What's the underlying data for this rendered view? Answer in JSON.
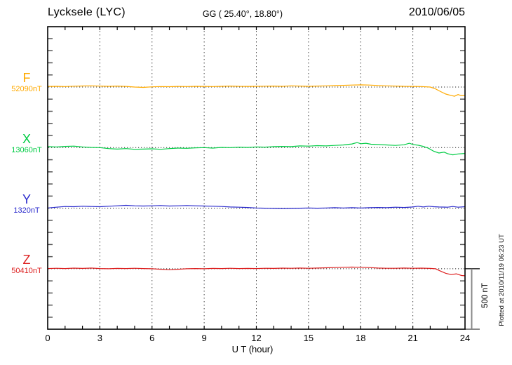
{
  "header": {
    "station": "Lycksele (LYC)",
    "coordinates": "GG ( 25.40°,  18.80°)",
    "date": "2010/06/05"
  },
  "components": [
    {
      "name": "F",
      "baseline_label": "52090nT",
      "color": "#FFAA00"
    },
    {
      "name": "X",
      "baseline_label": "13060nT",
      "color": "#00CC44"
    },
    {
      "name": "Y",
      "baseline_label": "1320nT",
      "color": "#2929CC"
    },
    {
      "name": "Z",
      "baseline_label": "50410nT",
      "color": "#DD2020"
    }
  ],
  "axis": {
    "x_ticks": [
      "0",
      "3",
      "6",
      "9",
      "12",
      "15",
      "18",
      "21",
      "24"
    ],
    "x_tick_hours": [
      0,
      3,
      6,
      9,
      12,
      15,
      18,
      21,
      24
    ],
    "x_label": "U T (hour)"
  },
  "scale_bar": {
    "label": "500 nT",
    "value_nT": 500
  },
  "plotted_note": "Plotted at 2010/11/19 06:23 UT",
  "chart_data": {
    "type": "line",
    "title": "Lycksele (LYC) magnetogram",
    "date": "2010/06/05",
    "xlabel": "U T (hour)",
    "xlim": [
      0,
      24
    ],
    "x_tick_interval_hours": 3,
    "grid": "dotted vertical every 3 h, dotted baseline per component",
    "scale_division_nT": 500,
    "legend_position": "left margin (component letters with baseline values)",
    "series": [
      {
        "name": "F",
        "baseline_nT": 52090,
        "color": "#FFAA00",
        "points_hour_deltaNT": [
          [
            0,
            5
          ],
          [
            0.5,
            6
          ],
          [
            1,
            4
          ],
          [
            1.5,
            7
          ],
          [
            2,
            9
          ],
          [
            2.5,
            10
          ],
          [
            3,
            8
          ],
          [
            3.5,
            6
          ],
          [
            4,
            8
          ],
          [
            4.5,
            5
          ],
          [
            5,
            0
          ],
          [
            5.5,
            -3
          ],
          [
            6,
            2
          ],
          [
            6.5,
            4
          ],
          [
            7,
            3
          ],
          [
            7.5,
            5
          ],
          [
            8,
            4
          ],
          [
            8.5,
            6
          ],
          [
            9,
            5
          ],
          [
            9.5,
            4
          ],
          [
            10,
            6
          ],
          [
            10.5,
            8
          ],
          [
            11,
            6
          ],
          [
            11.5,
            5
          ],
          [
            12,
            6
          ],
          [
            12.5,
            7
          ],
          [
            13,
            8
          ],
          [
            13.5,
            6
          ],
          [
            14,
            10
          ],
          [
            14.5,
            8
          ],
          [
            15,
            6
          ],
          [
            15.5,
            8
          ],
          [
            16,
            10
          ],
          [
            16.5,
            12
          ],
          [
            17,
            14
          ],
          [
            17.5,
            16
          ],
          [
            18,
            18
          ],
          [
            18.5,
            16
          ],
          [
            19,
            12
          ],
          [
            19.5,
            10
          ],
          [
            20,
            8
          ],
          [
            20.5,
            6
          ],
          [
            21,
            5
          ],
          [
            21.5,
            4
          ],
          [
            22,
            0
          ],
          [
            22.3,
            -15
          ],
          [
            22.6,
            -38
          ],
          [
            22.9,
            -58
          ],
          [
            23.2,
            -70
          ],
          [
            23.4,
            -76
          ],
          [
            23.6,
            -62
          ],
          [
            23.8,
            -72
          ],
          [
            24,
            -70
          ]
        ]
      },
      {
        "name": "X",
        "baseline_nT": 13060,
        "color": "#00CC44",
        "points_hour_deltaNT": [
          [
            0,
            8
          ],
          [
            0.5,
            6
          ],
          [
            1,
            10
          ],
          [
            1.5,
            12
          ],
          [
            2,
            6
          ],
          [
            2.5,
            2
          ],
          [
            3,
            0
          ],
          [
            3.5,
            -8
          ],
          [
            4,
            -12
          ],
          [
            4.5,
            -8
          ],
          [
            5,
            -14
          ],
          [
            5.5,
            -12
          ],
          [
            6,
            -10
          ],
          [
            6.5,
            -14
          ],
          [
            7,
            -8
          ],
          [
            7.5,
            -4
          ],
          [
            8,
            -6
          ],
          [
            8.5,
            -2
          ],
          [
            9,
            0
          ],
          [
            9.5,
            -4
          ],
          [
            10,
            2
          ],
          [
            10.5,
            0
          ],
          [
            11,
            4
          ],
          [
            11.5,
            2
          ],
          [
            12,
            6
          ],
          [
            12.5,
            4
          ],
          [
            13,
            8
          ],
          [
            13.5,
            10
          ],
          [
            14,
            8
          ],
          [
            14.5,
            14
          ],
          [
            15,
            12
          ],
          [
            15.5,
            16
          ],
          [
            16,
            14
          ],
          [
            16.5,
            18
          ],
          [
            17,
            22
          ],
          [
            17.5,
            30
          ],
          [
            17.8,
            42
          ],
          [
            18,
            32
          ],
          [
            18.3,
            36
          ],
          [
            18.6,
            28
          ],
          [
            19,
            26
          ],
          [
            19.5,
            22
          ],
          [
            20,
            18
          ],
          [
            20.5,
            24
          ],
          [
            20.8,
            36
          ],
          [
            21,
            26
          ],
          [
            21.3,
            20
          ],
          [
            21.6,
            10
          ],
          [
            21.9,
            -5
          ],
          [
            22.2,
            -30
          ],
          [
            22.5,
            -45
          ],
          [
            22.8,
            -38
          ],
          [
            23,
            -50
          ],
          [
            23.3,
            -60
          ],
          [
            23.6,
            -52
          ],
          [
            24,
            -48
          ]
        ]
      },
      {
        "name": "Y",
        "baseline_nT": 1320,
        "color": "#2929CC",
        "points_hour_deltaNT": [
          [
            0,
            2
          ],
          [
            0.5,
            8
          ],
          [
            1,
            14
          ],
          [
            1.5,
            12
          ],
          [
            2,
            16
          ],
          [
            2.5,
            14
          ],
          [
            3,
            12
          ],
          [
            3.5,
            16
          ],
          [
            4,
            20
          ],
          [
            4.5,
            24
          ],
          [
            5,
            20
          ],
          [
            5.5,
            18
          ],
          [
            6,
            20
          ],
          [
            6.5,
            22
          ],
          [
            7,
            18
          ],
          [
            7.5,
            20
          ],
          [
            8,
            22
          ],
          [
            8.5,
            20
          ],
          [
            9,
            18
          ],
          [
            9.5,
            16
          ],
          [
            10,
            14
          ],
          [
            10.5,
            10
          ],
          [
            11,
            8
          ],
          [
            11.5,
            6
          ],
          [
            12,
            2
          ],
          [
            12.5,
            0
          ],
          [
            13,
            -2
          ],
          [
            13.5,
            -3
          ],
          [
            14,
            -2
          ],
          [
            14.5,
            0
          ],
          [
            15,
            2
          ],
          [
            15.5,
            0
          ],
          [
            16,
            2
          ],
          [
            16.5,
            4
          ],
          [
            17,
            2
          ],
          [
            17.5,
            4
          ],
          [
            18,
            2
          ],
          [
            18.5,
            4
          ],
          [
            19,
            6
          ],
          [
            19.5,
            4
          ],
          [
            20,
            8
          ],
          [
            20.5,
            6
          ],
          [
            21,
            10
          ],
          [
            21.3,
            16
          ],
          [
            21.6,
            10
          ],
          [
            21.9,
            16
          ],
          [
            22.2,
            12
          ],
          [
            22.5,
            10
          ],
          [
            23,
            8
          ],
          [
            23.3,
            14
          ],
          [
            23.6,
            8
          ],
          [
            24,
            12
          ]
        ]
      },
      {
        "name": "Z",
        "baseline_nT": 50410,
        "color": "#DD2020",
        "points_hour_deltaNT": [
          [
            0,
            2
          ],
          [
            0.5,
            4
          ],
          [
            1,
            2
          ],
          [
            1.5,
            5
          ],
          [
            2,
            3
          ],
          [
            2.5,
            6
          ],
          [
            3,
            2
          ],
          [
            3.5,
            0
          ],
          [
            4,
            3
          ],
          [
            4.5,
            2
          ],
          [
            5,
            4
          ],
          [
            5.5,
            2
          ],
          [
            6,
            0
          ],
          [
            6.5,
            -4
          ],
          [
            7,
            -8
          ],
          [
            7.5,
            -4
          ],
          [
            8,
            0
          ],
          [
            8.5,
            2
          ],
          [
            9,
            0
          ],
          [
            9.5,
            3
          ],
          [
            10,
            2
          ],
          [
            10.5,
            4
          ],
          [
            11,
            2
          ],
          [
            11.5,
            3
          ],
          [
            12,
            2
          ],
          [
            12.5,
            4
          ],
          [
            13,
            3
          ],
          [
            13.5,
            5
          ],
          [
            14,
            4
          ],
          [
            14.5,
            6
          ],
          [
            15,
            4
          ],
          [
            15.5,
            6
          ],
          [
            16,
            8
          ],
          [
            16.5,
            10
          ],
          [
            17,
            12
          ],
          [
            17.5,
            14
          ],
          [
            18,
            12
          ],
          [
            18.5,
            10
          ],
          [
            19,
            6
          ],
          [
            19.5,
            4
          ],
          [
            20,
            4
          ],
          [
            20.5,
            6
          ],
          [
            21,
            4
          ],
          [
            21.5,
            5
          ],
          [
            22,
            3
          ],
          [
            22.3,
            0
          ],
          [
            22.6,
            -20
          ],
          [
            22.9,
            -38
          ],
          [
            23.2,
            -48
          ],
          [
            23.5,
            -42
          ],
          [
            23.8,
            -56
          ],
          [
            24,
            -58
          ]
        ]
      }
    ]
  }
}
